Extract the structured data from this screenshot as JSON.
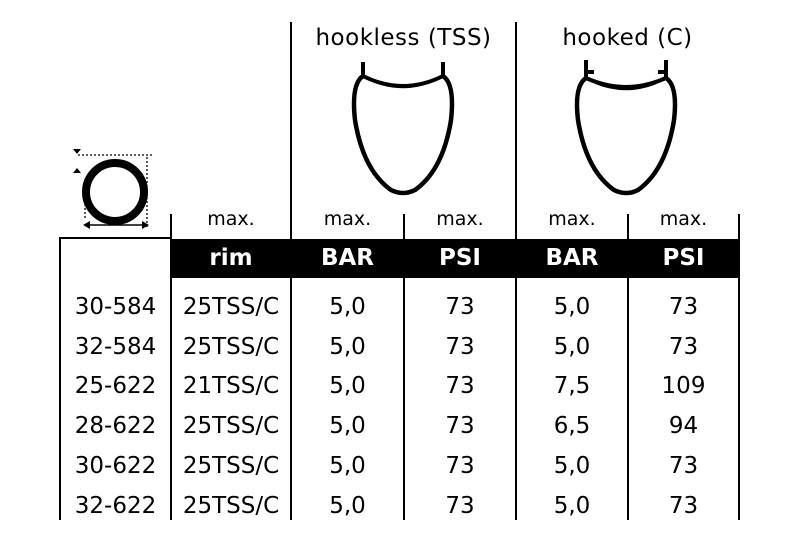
{
  "groups": {
    "hookless": "hookless (TSS)",
    "hooked": "hooked (C)"
  },
  "max_label": "max.",
  "headers": {
    "rim": "rim",
    "bar1": "BAR",
    "psi1": "PSI",
    "bar2": "BAR",
    "psi2": "PSI"
  },
  "rows": [
    {
      "size": "30-584",
      "rim": "25TSS/C",
      "tss_bar": "5,0",
      "tss_psi": "73",
      "c_bar": "5,0",
      "c_psi": "73"
    },
    {
      "size": "32-584",
      "rim": "25TSS/C",
      "tss_bar": "5,0",
      "tss_psi": "73",
      "c_bar": "5,0",
      "c_psi": "73"
    },
    {
      "size": "25-622",
      "rim": "21TSS/C",
      "tss_bar": "5,0",
      "tss_psi": "73",
      "c_bar": "7,5",
      "c_psi": "109"
    },
    {
      "size": "28-622",
      "rim": "25TSS/C",
      "tss_bar": "5,0",
      "tss_psi": "73",
      "c_bar": "6,5",
      "c_psi": "94"
    },
    {
      "size": "30-622",
      "rim": "25TSS/C",
      "tss_bar": "5,0",
      "tss_psi": "73",
      "c_bar": "5,0",
      "c_psi": "73"
    },
    {
      "size": "32-622",
      "rim": "25TSS/C",
      "tss_bar": "5,0",
      "tss_psi": "73",
      "c_bar": "5,0",
      "c_psi": "73"
    }
  ]
}
